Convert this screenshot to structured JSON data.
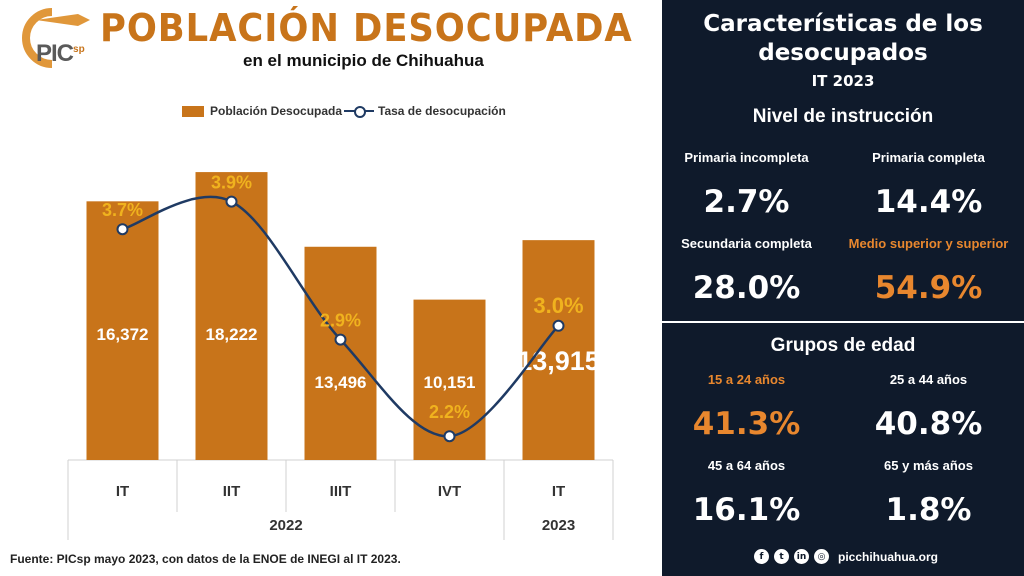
{
  "header": {
    "logo_text": "PIC",
    "logo_sup": "sp",
    "title": "POBLACIÓN DESOCUPADA",
    "subtitle": "en el municipio de Chihuahua"
  },
  "legend": {
    "bars": "Población Desocupada",
    "line": "Tasa de desocupación"
  },
  "chart_data": {
    "type": "bar",
    "categories": [
      "IT",
      "IIT",
      "IIIT",
      "IVT",
      "IT"
    ],
    "years": [
      {
        "label": "2022",
        "categories": [
          "IT",
          "IIT",
          "IIIT",
          "IVT"
        ]
      },
      {
        "label": "2023",
        "categories": [
          "IT"
        ]
      }
    ],
    "series": [
      {
        "name": "Población Desocupada",
        "type": "bar",
        "values": [
          16372,
          18222,
          13496,
          10151,
          13915
        ],
        "labels": [
          "16,372",
          "18,222",
          "13,496",
          "10,151",
          "13,915"
        ],
        "color": "#c8741a"
      },
      {
        "name": "Tasa de desocupación",
        "type": "line",
        "values": [
          3.7,
          3.9,
          2.9,
          2.2,
          3.0
        ],
        "labels": [
          "3.7%",
          "3.9%",
          "2.9%",
          "2.2%",
          "3.0%"
        ],
        "color": "#1f3a63"
      }
    ],
    "highlight_last": true,
    "legend_position": "top"
  },
  "source": "Fuente: PICsp mayo 2023, con datos de la ENOE de INEGI al IT 2023.",
  "panel": {
    "title_line1": "Características de los",
    "title_line2": "desocupados",
    "period": "IT 2023",
    "education": {
      "heading": "Nivel de instrucción",
      "items": [
        {
          "label": "Primaria incompleta",
          "value": "2.7%"
        },
        {
          "label": "Primaria completa",
          "value": "14.4%"
        },
        {
          "label": "Secundaria completa",
          "value": "28.0%"
        },
        {
          "label": "Medio superior y superior",
          "value": "54.9%"
        }
      ]
    },
    "age": {
      "heading": "Grupos de edad",
      "items": [
        {
          "label": "15 a 24 años",
          "value": "41.3%"
        },
        {
          "label": "25 a 44 años",
          "value": "40.8%"
        },
        {
          "label": "45 a 64 años",
          "value": "16.1%"
        },
        {
          "label": "65 y más años",
          "value": "1.8%"
        }
      ]
    },
    "accent_color": "#e8872e",
    "background_color": "#0f1a2b"
  },
  "social": {
    "icons": [
      "facebook-icon",
      "twitter-icon",
      "linkedin-icon",
      "web-icon"
    ],
    "site": "picchihuahua.org"
  }
}
